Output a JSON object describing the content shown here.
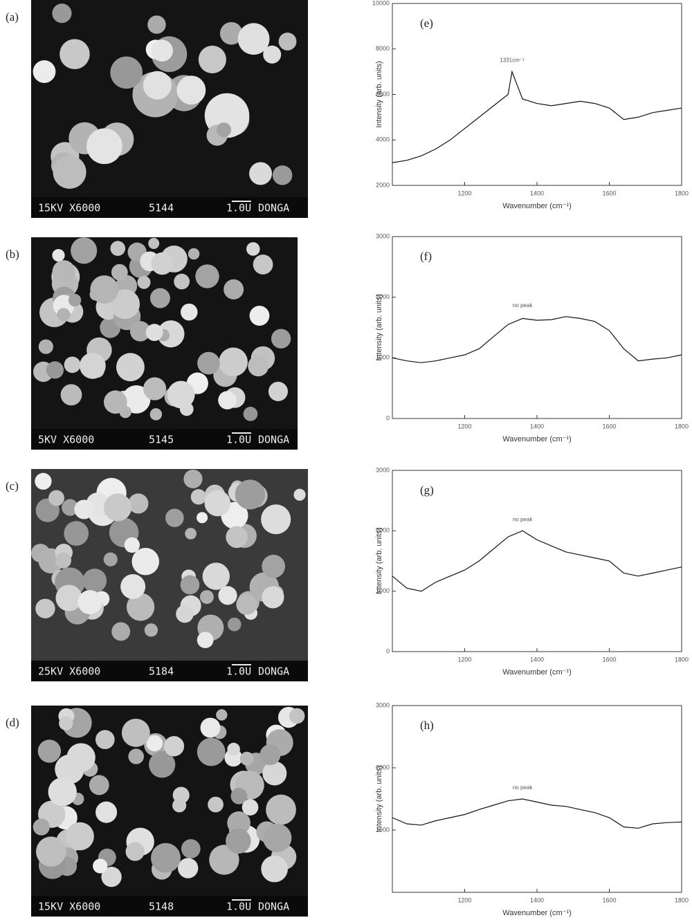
{
  "figures": [
    {
      "panel": "(a)",
      "caption": "15KV X6000",
      "code": "5144",
      "scale": "1.0U",
      "lab": "DONGA"
    },
    {
      "panel": "(b)",
      "caption": "5KV X6000",
      "code": "5145",
      "scale": "1.0U",
      "lab": "DONGA"
    },
    {
      "panel": "(c)",
      "caption": "25KV X6000",
      "code": "5184",
      "scale": "1.0U",
      "lab": "DONGA"
    },
    {
      "panel": "(d)",
      "caption": "15KV X6000",
      "code": "5148",
      "scale": "1.0U",
      "lab": "DONGA"
    }
  ],
  "chart_data": [
    {
      "type": "line",
      "panel": "(e)",
      "xlabel": "Wavenumber (cm⁻¹)",
      "ylabel": "Intensity (arb. units)",
      "annotation": "1331cm⁻¹",
      "annotation_x": 1331,
      "x": [
        1000,
        1040,
        1080,
        1120,
        1160,
        1200,
        1240,
        1280,
        1320,
        1331,
        1360,
        1400,
        1440,
        1480,
        1520,
        1560,
        1600,
        1640,
        1680,
        1720,
        1760,
        1800
      ],
      "values": [
        3000,
        3100,
        3300,
        3600,
        4000,
        4500,
        5000,
        5500,
        6000,
        7000,
        5800,
        5600,
        5500,
        5600,
        5700,
        5600,
        5400,
        4900,
        5000,
        5200,
        5300,
        5400
      ],
      "color": "#111",
      "xlim": [
        1000,
        1800
      ],
      "xticks": [
        1200,
        1400,
        1600,
        1800
      ],
      "ylim": [
        2000,
        10000
      ],
      "yticks": [
        2000,
        4000,
        6000,
        8000,
        10000
      ]
    },
    {
      "type": "line",
      "panel": "(f)",
      "xlabel": "Wavenumber (cm⁻¹)",
      "ylabel": "Intensity (arb. units)",
      "annotation": "no peak",
      "annotation_x": 1360,
      "x": [
        1000,
        1040,
        1080,
        1120,
        1160,
        1200,
        1240,
        1280,
        1320,
        1360,
        1400,
        1440,
        1480,
        1520,
        1560,
        1600,
        1640,
        1680,
        1720,
        1760,
        1800
      ],
      "values": [
        1000,
        950,
        920,
        950,
        1000,
        1050,
        1150,
        1350,
        1550,
        1650,
        1620,
        1630,
        1680,
        1650,
        1600,
        1450,
        1150,
        950,
        980,
        1000,
        1050
      ],
      "color": "#111",
      "xlim": [
        1000,
        1800
      ],
      "xticks": [
        1200,
        1400,
        1600,
        1800
      ],
      "ylim": [
        0,
        3000
      ],
      "yticks": [
        0,
        1000,
        2000,
        3000
      ]
    },
    {
      "type": "line",
      "panel": "(g)",
      "xlabel": "Wavenumber (cm⁻¹)",
      "ylabel": "Intensity (arb. units)",
      "annotation": "no peak",
      "annotation_x": 1360,
      "x": [
        1000,
        1040,
        1080,
        1120,
        1160,
        1200,
        1240,
        1280,
        1320,
        1360,
        1400,
        1440,
        1480,
        1520,
        1560,
        1600,
        1640,
        1680,
        1720,
        1760,
        1800
      ],
      "values": [
        1250,
        1050,
        1000,
        1150,
        1250,
        1350,
        1500,
        1700,
        1900,
        2000,
        1850,
        1750,
        1650,
        1600,
        1550,
        1500,
        1300,
        1250,
        1300,
        1350,
        1400
      ],
      "color": "#111",
      "xlim": [
        1000,
        1800
      ],
      "xticks": [
        1200,
        1400,
        1600,
        1800
      ],
      "ylim": [
        0,
        3000
      ],
      "yticks": [
        0,
        1000,
        2000,
        3000
      ]
    },
    {
      "type": "line",
      "panel": "(h)",
      "xlabel": "Wavenumber (cm⁻¹)",
      "ylabel": "Intensity (arb. units)",
      "annotation": "no peak",
      "annotation_x": 1360,
      "x": [
        1000,
        1040,
        1080,
        1120,
        1160,
        1200,
        1240,
        1280,
        1320,
        1360,
        1400,
        1440,
        1480,
        1520,
        1560,
        1600,
        1640,
        1680,
        1720,
        1760,
        1800
      ],
      "values": [
        1200,
        1100,
        1080,
        1150,
        1200,
        1250,
        1330,
        1400,
        1470,
        1500,
        1450,
        1400,
        1380,
        1330,
        1280,
        1200,
        1050,
        1030,
        1100,
        1120,
        1130
      ],
      "color": "#111",
      "xlim": [
        1000,
        1800
      ],
      "xticks": [
        1200,
        1400,
        1600,
        1800
      ],
      "ylim": [
        0,
        3000
      ],
      "yticks": [
        1000,
        2000,
        3000
      ]
    }
  ]
}
